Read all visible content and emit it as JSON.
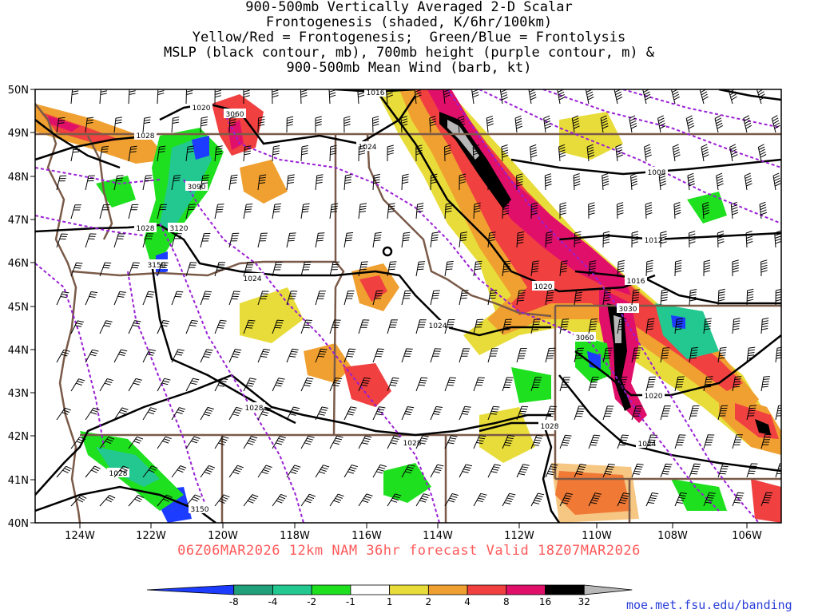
{
  "title_lines": [
    "900-500mb Vertically Averaged 2-D Scalar",
    "Frontogenesis (shaded, K/6hr/100km)",
    "Yellow/Red = Frontogenesis;  Green/Blue = Frontolysis",
    "MSLP (black contour, mb), 700mb height (purple contour, m) &",
    "900-500mb Mean Wind (barb, kt)"
  ],
  "forecast_label": "06Z06MAR2026 12km NAM 36hr forecast Valid 18Z07MAR2026",
  "website": "moe.met.fsu.edu/banding",
  "map": {
    "lat_labels": [
      "50N",
      "49N",
      "48N",
      "47N",
      "46N",
      "45N",
      "44N",
      "43N",
      "42N",
      "41N",
      "40N"
    ],
    "lon_labels": [
      "124W",
      "122W",
      "120W",
      "118W",
      "116W",
      "114W",
      "112W",
      "110W",
      "108W",
      "106W"
    ],
    "mslp_labels": [
      {
        "text": "1016"
      },
      {
        "text": "1020"
      },
      {
        "text": "1024"
      },
      {
        "text": "1028"
      },
      {
        "text": "1028"
      },
      {
        "text": "1024"
      },
      {
        "text": "1024"
      },
      {
        "text": "1028"
      },
      {
        "text": "1028"
      },
      {
        "text": "1028"
      },
      {
        "text": "1028"
      },
      {
        "text": "1020"
      },
      {
        "text": "1024"
      },
      {
        "text": "1016"
      },
      {
        "text": "1012"
      },
      {
        "text": "1008"
      },
      {
        "text": "1020"
      },
      {
        "text": "1024"
      }
    ],
    "height_labels": [
      {
        "text": "3060"
      },
      {
        "text": "3090"
      },
      {
        "text": "3120"
      },
      {
        "text": "3150"
      },
      {
        "text": "3030"
      },
      {
        "text": "3060"
      },
      {
        "text": "3150"
      }
    ],
    "colors": {
      "mslp": "#000000",
      "height": "#9b1fd6",
      "borders": "#7a5a48",
      "barb": "#000000"
    }
  },
  "colorbar": {
    "labels": [
      "-8",
      "-4",
      "-2",
      "-1",
      "1",
      "2",
      "4",
      "8",
      "16",
      "32"
    ],
    "colors": [
      "#1c3cff",
      "#1fa07a",
      "#22c890",
      "#1fe01f",
      "#ffffff",
      "#e8dc3a",
      "#f0a030",
      "#f04040",
      "#e0106a",
      "#000000",
      "#b8b8b8"
    ]
  }
}
